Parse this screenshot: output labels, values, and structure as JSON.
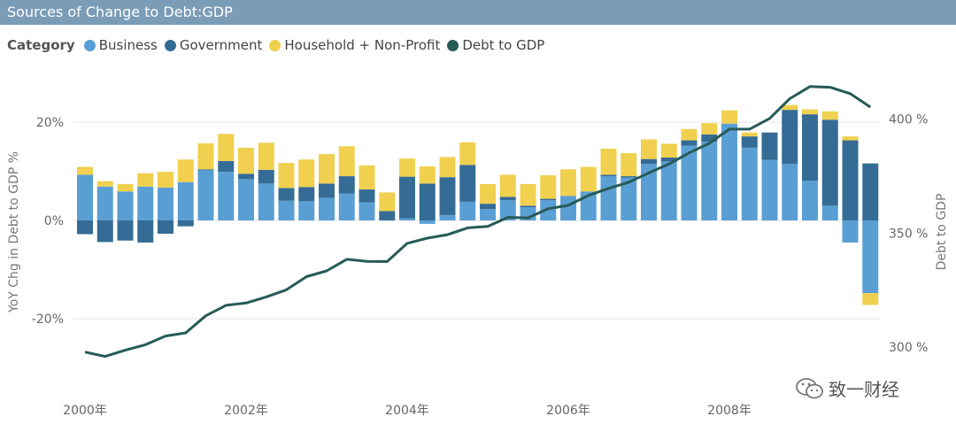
{
  "title": "Sources of Change to Debt:GDP",
  "legend": {
    "title": "Category",
    "items": [
      {
        "label": "Business",
        "color": "#5a9fd4"
      },
      {
        "label": "Government",
        "color": "#356c95"
      },
      {
        "label": "Household + Non-Profit",
        "color": "#f0d04e"
      },
      {
        "label": "Debt to GDP",
        "color": "#275b57"
      }
    ]
  },
  "watermark": "致一财经",
  "chart_data": {
    "type": "bar",
    "stacked": true,
    "title": "Sources of Change to Debt:GDP",
    "ylabel": "YoY Chg in Debt to GDP %",
    "y2label": "Debt to GDP",
    "ylim": [
      -0.33,
      0.3
    ],
    "y2lim": [
      292,
      422
    ],
    "yticks": [
      {
        "value": 0.2,
        "label": "20%"
      },
      {
        "value": 0,
        "label": "0%"
      },
      {
        "value": -0.2,
        "label": "-20%"
      }
    ],
    "y2ticks": [
      {
        "value": 400,
        "label": "400 %"
      },
      {
        "value": 350,
        "label": "350 %"
      },
      {
        "value": 300,
        "label": "300 %"
      }
    ],
    "xticks": [
      {
        "index": 0,
        "label": "2000年"
      },
      {
        "index": 8,
        "label": "2002年"
      },
      {
        "index": 16,
        "label": "2004年"
      },
      {
        "index": 24,
        "label": "2006年"
      },
      {
        "index": 32,
        "label": "2008年"
      }
    ],
    "series": [
      {
        "name": "Business",
        "color": "#5a9fd4",
        "values": [
          0.093,
          0.069,
          0.059,
          0.069,
          0.067,
          0.078,
          0.102,
          0.099,
          0.084,
          0.075,
          0.04,
          0.039,
          0.046,
          0.055,
          0.037,
          0.0,
          0.004,
          -0.007,
          0.011,
          0.038,
          0.023,
          0.041,
          0.027,
          0.041,
          0.05,
          0.059,
          0.09,
          0.087,
          0.115,
          0.12,
          0.152,
          0.16,
          0.197,
          0.148,
          0.123,
          0.115,
          0.081,
          0.03,
          -0.045,
          -0.148
        ]
      },
      {
        "name": "Government",
        "color": "#356c95",
        "values": [
          -0.028,
          -0.044,
          -0.041,
          -0.045,
          -0.027,
          -0.012,
          0.002,
          0.022,
          0.011,
          0.028,
          0.026,
          0.029,
          0.029,
          0.035,
          0.026,
          0.019,
          0.085,
          0.075,
          0.077,
          0.075,
          0.011,
          0.007,
          0.003,
          0.003,
          0.0,
          0.0,
          0.003,
          0.003,
          0.01,
          0.008,
          0.011,
          0.015,
          0.0,
          0.023,
          0.056,
          0.11,
          0.135,
          0.175,
          0.163,
          0.116
        ]
      },
      {
        "name": "Household + Non-Profit",
        "color": "#f0d04e",
        "values": [
          0.016,
          0.011,
          0.015,
          0.027,
          0.032,
          0.046,
          0.053,
          0.055,
          0.053,
          0.055,
          0.051,
          0.056,
          0.06,
          0.061,
          0.049,
          0.038,
          0.037,
          0.035,
          0.041,
          0.046,
          0.04,
          0.045,
          0.044,
          0.048,
          0.054,
          0.05,
          0.053,
          0.047,
          0.04,
          0.028,
          0.023,
          0.023,
          0.027,
          0.008,
          0.0,
          0.01,
          0.01,
          0.017,
          0.008,
          -0.024
        ]
      }
    ],
    "line": {
      "name": "Debt to GDP",
      "color": "#275b57",
      "values": [
        297.8,
        295.9,
        298.6,
        301.0,
        304.8,
        306.2,
        313.7,
        318.3,
        319.3,
        322.0,
        325.1,
        330.9,
        333.4,
        338.5,
        337.6,
        337.5,
        345.5,
        347.8,
        349.3,
        352.3,
        352.9,
        356.9,
        356.7,
        360.7,
        362.2,
        366.5,
        369.6,
        372.3,
        376.4,
        380.3,
        385.2,
        389.4,
        395.6,
        395.6,
        400.3,
        409.0,
        414.3,
        414.0,
        411.2,
        405.3
      ]
    }
  }
}
